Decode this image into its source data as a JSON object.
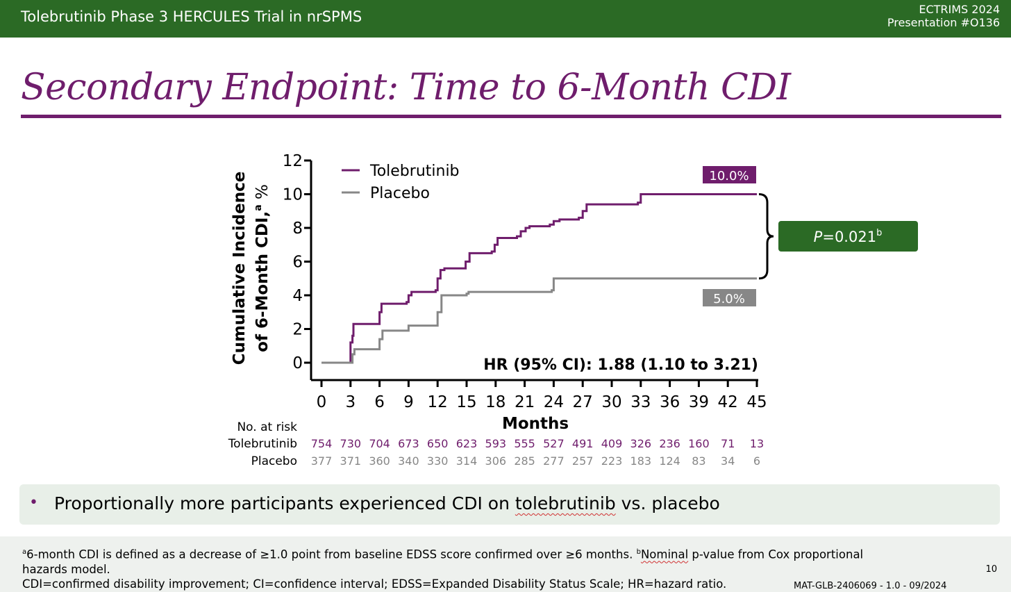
{
  "header": {
    "left_title": "Tolebrutinib Phase 3 HERCULES Trial in nrSPMS",
    "conference": "ECTRIMS 2024",
    "presentation": "Presentation #O136"
  },
  "slide": {
    "title": "Secondary Endpoint: Time to 6-Month CDI"
  },
  "colors": {
    "tolebrutinib": "#6f1d6c",
    "placebo": "#878787",
    "green": "#2b6a25",
    "title": "#6f1d6c"
  },
  "chart_data": {
    "type": "line",
    "xlabel": "Months",
    "ylabel_line1": "Cumulative Incidence",
    "ylabel_line2": "of 6-Month CDI,",
    "ylabel_sup": "a",
    "ylabel_unit": " %",
    "xlim": [
      0,
      45
    ],
    "ylim": [
      0,
      12
    ],
    "x_ticks": [
      0,
      3,
      6,
      9,
      12,
      15,
      18,
      21,
      24,
      27,
      30,
      33,
      36,
      39,
      42,
      45
    ],
    "y_ticks": [
      0,
      2,
      4,
      6,
      8,
      10,
      12
    ],
    "legend_position": "top-left",
    "series": [
      {
        "name": "Tolebrutinib",
        "color": "#6f1d6c",
        "final_label": "10.0%",
        "points": [
          [
            0,
            0
          ],
          [
            2.9,
            0
          ],
          [
            3,
            1.2
          ],
          [
            3.2,
            1.6
          ],
          [
            3.3,
            2.3
          ],
          [
            5.8,
            2.3
          ],
          [
            6,
            3.0
          ],
          [
            6.2,
            3.5
          ],
          [
            8.8,
            3.6
          ],
          [
            9,
            4.0
          ],
          [
            9.3,
            4.2
          ],
          [
            11.8,
            4.3
          ],
          [
            12,
            5.0
          ],
          [
            12.3,
            5.5
          ],
          [
            12.7,
            5.6
          ],
          [
            14.6,
            5.6
          ],
          [
            14.9,
            6.0
          ],
          [
            15.3,
            6.5
          ],
          [
            17.6,
            6.6
          ],
          [
            17.9,
            7.0
          ],
          [
            18.2,
            7.4
          ],
          [
            20.2,
            7.5
          ],
          [
            20.6,
            7.8
          ],
          [
            21.1,
            8.0
          ],
          [
            21.5,
            8.1
          ],
          [
            23.6,
            8.2
          ],
          [
            24,
            8.4
          ],
          [
            24.6,
            8.5
          ],
          [
            26.6,
            8.6
          ],
          [
            27,
            9.0
          ],
          [
            27.4,
            9.4
          ],
          [
            30.5,
            9.4
          ],
          [
            32.7,
            9.5
          ],
          [
            33,
            10.0
          ],
          [
            45,
            10.0
          ]
        ]
      },
      {
        "name": "Placebo",
        "color": "#878787",
        "final_label": "5.0%",
        "points": [
          [
            0,
            0
          ],
          [
            3,
            0
          ],
          [
            3.2,
            0.5
          ],
          [
            3.4,
            0.8
          ],
          [
            5.8,
            0.8
          ],
          [
            6,
            1.4
          ],
          [
            6.3,
            1.9
          ],
          [
            8.8,
            1.9
          ],
          [
            9,
            2.2
          ],
          [
            11.8,
            2.2
          ],
          [
            12,
            3.0
          ],
          [
            12.4,
            4.0
          ],
          [
            15,
            4.1
          ],
          [
            15.2,
            4.2
          ],
          [
            23.8,
            4.3
          ],
          [
            24,
            5.0
          ],
          [
            45,
            5.0
          ]
        ]
      }
    ],
    "hr_text": "HR (95% CI): 1.88 (1.10 to 3.21)",
    "p_value": {
      "prefix": "P",
      "text": "=0.021",
      "sup": "b"
    },
    "risk_table": {
      "title": "No. at risk",
      "rows": [
        {
          "name": "Tolebrutinib",
          "values": [
            754,
            730,
            704,
            673,
            650,
            623,
            593,
            555,
            527,
            491,
            409,
            326,
            236,
            160,
            71,
            13
          ]
        },
        {
          "name": "Placebo",
          "values": [
            377,
            371,
            360,
            340,
            330,
            314,
            306,
            285,
            277,
            257,
            223,
            183,
            124,
            83,
            34,
            6
          ]
        }
      ]
    }
  },
  "bullet": {
    "before": "Proportionally more participants experienced CDI on ",
    "squiggle": "tolebrutinib",
    "after": " vs. placebo"
  },
  "footer": {
    "note_a_sup": "a",
    "note_a": "6-month CDI is defined as a decrease of ≥1.0 point from baseline EDSS score confirmed over ≥6 months. ",
    "note_b_sup": "b",
    "note_b_word": "Nominal",
    "note_b": " p-value from Cox proportional hazards model.",
    "abbreviations": "CDI=confirmed disability improvement; CI=confidence interval; EDSS=Expanded Disability Status Scale; HR=hazard ratio.",
    "page_number": "10",
    "doc_code": "MAT-GLB-2406069 - 1.0 - 09/2024"
  }
}
